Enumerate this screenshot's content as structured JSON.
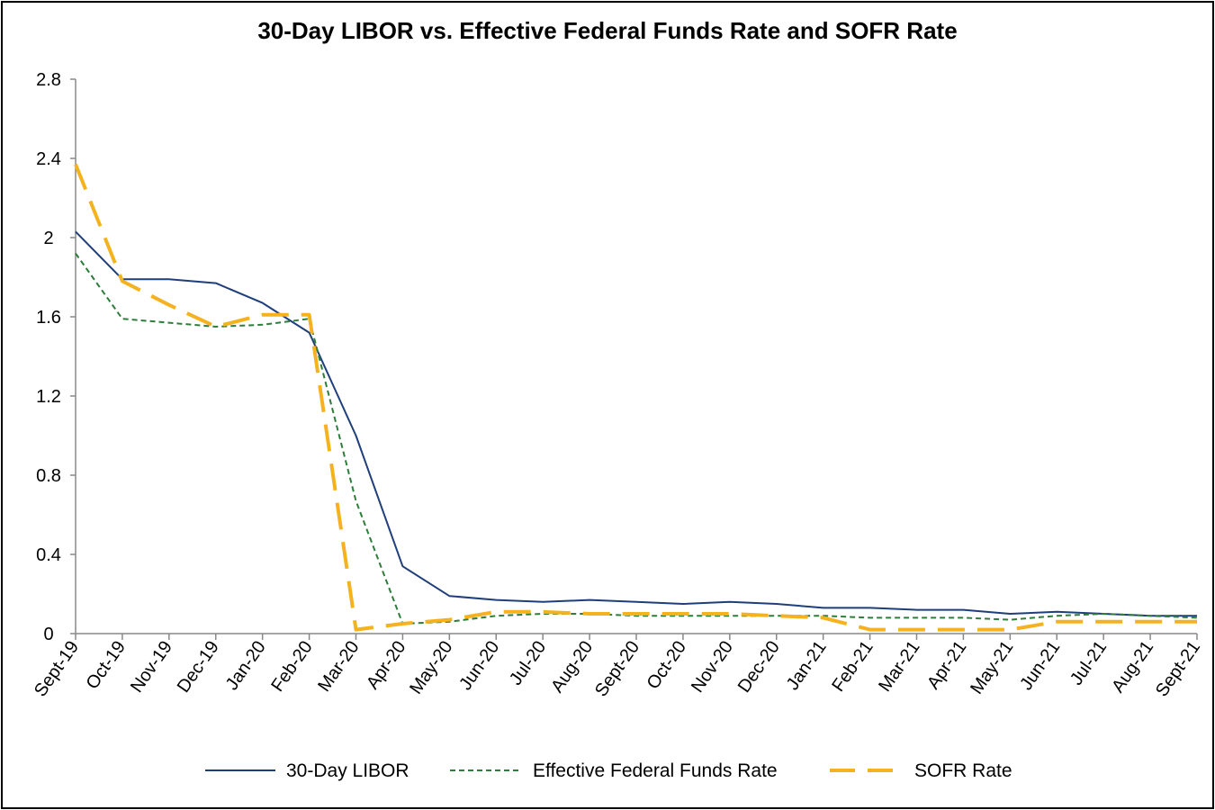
{
  "chart_data": {
    "type": "line",
    "title": "30-Day LIBOR vs. Effective Federal Funds Rate and SOFR Rate",
    "xlabel": "",
    "ylabel": "",
    "ylim": [
      0,
      2.8
    ],
    "yticks": [
      "0",
      "0.4",
      "0.8",
      "1.2",
      "1.6",
      "2",
      "2.4",
      "2.8"
    ],
    "categories": [
      "Sept-19",
      "Oct-19",
      "Nov-19",
      "Dec-19",
      "Jan-20",
      "Feb-20",
      "Mar-20",
      "Apr-20",
      "May-20",
      "Jun-20",
      "Jul-20",
      "Aug-20",
      "Sept-20",
      "Oct-20",
      "Nov-20",
      "Dec-20",
      "Jan-21",
      "Feb-21",
      "Mar-21",
      "Apr-21",
      "May-21",
      "Jun-21",
      "Jul-21",
      "Aug-21",
      "Sept-21"
    ],
    "grid": false,
    "legend_position": "bottom",
    "series": [
      {
        "name": "30-Day LIBOR",
        "color": "#1f3f7a",
        "style": "solid",
        "values": [
          2.03,
          1.79,
          1.79,
          1.77,
          1.67,
          1.52,
          1.0,
          0.34,
          0.19,
          0.17,
          0.16,
          0.17,
          0.16,
          0.15,
          0.16,
          0.15,
          0.13,
          0.13,
          0.12,
          0.12,
          0.1,
          0.11,
          0.1,
          0.09,
          0.09
        ]
      },
      {
        "name": "Effective Federal Funds Rate",
        "color": "#2e7d3a",
        "style": "dotted",
        "values": [
          1.92,
          1.59,
          1.57,
          1.55,
          1.56,
          1.59,
          0.67,
          0.05,
          0.06,
          0.09,
          0.1,
          0.1,
          0.09,
          0.09,
          0.09,
          0.09,
          0.09,
          0.08,
          0.08,
          0.08,
          0.07,
          0.09,
          0.1,
          0.09,
          0.08
        ]
      },
      {
        "name": "SOFR Rate",
        "color": "#f5b21f",
        "style": "dashed",
        "values": [
          2.37,
          1.78,
          1.66,
          1.55,
          1.61,
          1.61,
          0.02,
          0.05,
          0.07,
          0.11,
          0.11,
          0.1,
          0.1,
          0.1,
          0.1,
          0.09,
          0.08,
          0.02,
          0.02,
          0.02,
          0.02,
          0.06,
          0.06,
          0.06,
          0.06
        ]
      }
    ]
  }
}
